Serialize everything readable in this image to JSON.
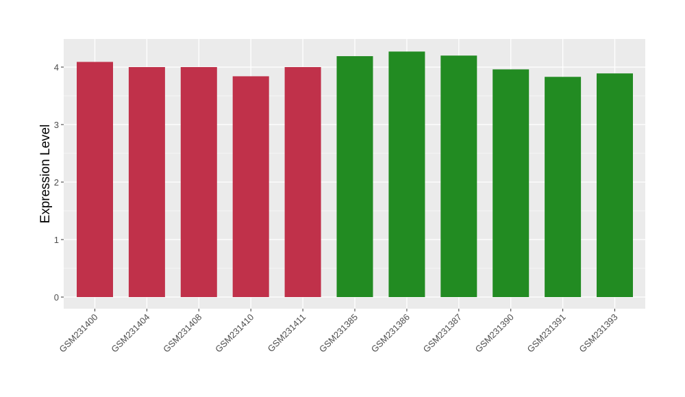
{
  "chart_data": {
    "type": "bar",
    "title": "",
    "xlabel": "",
    "ylabel": "Expression Level",
    "categories": [
      "GSM231400",
      "GSM231404",
      "GSM231408",
      "GSM231410",
      "GSM231411",
      "GSM231385",
      "GSM231386",
      "GSM231387",
      "GSM231390",
      "GSM231391",
      "GSM231393"
    ],
    "values": [
      4.09,
      4.0,
      4.0,
      3.84,
      4.0,
      4.19,
      4.27,
      4.2,
      3.96,
      3.83,
      3.89
    ],
    "bar_colors": [
      "#c0314a",
      "#c0314a",
      "#c0314a",
      "#c0314a",
      "#c0314a",
      "#228b22",
      "#228b22",
      "#228b22",
      "#228b22",
      "#228b22",
      "#228b22"
    ],
    "ylim": [
      -0.2,
      4.5
    ],
    "yticks": [
      0,
      1,
      2,
      3,
      4
    ],
    "grid": true,
    "panel_background": "#ebebeb"
  }
}
